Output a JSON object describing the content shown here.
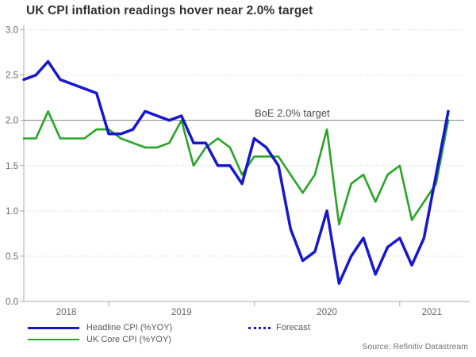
{
  "title": "UK CPI inflation readings hover near 2.0% target",
  "source": "Source: Refinitiv Datastream",
  "legend": {
    "headline": "Headline CPI (%YOY)",
    "core": "UK Core CPI (%YOY)",
    "forecast": "Forecast"
  },
  "colors": {
    "headline": "#1717cf",
    "core": "#27a527",
    "target_line": "#7f7f7f",
    "grid": "#d6d6d6",
    "axis": "#a8a8a8",
    "tick_text": "#666666",
    "title_text": "#333333",
    "annotation_text": "#4d4d4d"
  },
  "chart_data": {
    "type": "line",
    "title": "UK CPI inflation readings hover near 2.0% target",
    "xlabel": "",
    "ylabel": "",
    "ylim": [
      0,
      3.0
    ],
    "yticks": [
      0.0,
      0.5,
      1.0,
      1.5,
      2.0,
      2.5,
      3.0
    ],
    "xticks_years": [
      "2018",
      "2019",
      "2020",
      "2021"
    ],
    "grid": "dotted horizontal gridlines at each 0.5, solid line at 2.0",
    "legend_position": "bottom",
    "target": {
      "label": "BoE 2.0% target",
      "value": 2.0
    },
    "forecast": {
      "label": "Forecast",
      "series": "Headline CPI (%YOY)",
      "style": "dotted blue, final segment of headline line"
    },
    "x": [
      "2018-06",
      "2018-07",
      "2018-08",
      "2018-09",
      "2018-10",
      "2018-11",
      "2018-12",
      "2019-01",
      "2019-02",
      "2019-03",
      "2019-04",
      "2019-05",
      "2019-06",
      "2019-07",
      "2019-08",
      "2019-09",
      "2019-10",
      "2019-11",
      "2019-12",
      "2020-01",
      "2020-02",
      "2020-03",
      "2020-04",
      "2020-05",
      "2020-06",
      "2020-07",
      "2020-08",
      "2020-09",
      "2020-10",
      "2020-11",
      "2020-12",
      "2021-01",
      "2021-02",
      "2021-03",
      "2021-04",
      "2021-05"
    ],
    "series": [
      {
        "name": "Headline CPI (%YOY)",
        "color_key": "headline",
        "values": [
          2.45,
          2.5,
          2.65,
          2.45,
          2.4,
          2.35,
          2.3,
          1.85,
          1.85,
          1.9,
          2.1,
          2.05,
          2.0,
          2.05,
          1.75,
          1.75,
          1.5,
          1.5,
          1.3,
          1.8,
          1.7,
          1.5,
          0.8,
          0.45,
          0.55,
          1.0,
          0.2,
          0.5,
          0.7,
          0.3,
          0.6,
          0.7,
          0.4,
          0.7,
          1.4,
          2.1
        ]
      },
      {
        "name": "UK Core CPI (%YOY)",
        "color_key": "core",
        "values": [
          1.8,
          1.8,
          2.1,
          1.8,
          1.8,
          1.8,
          1.9,
          1.9,
          1.8,
          1.75,
          1.7,
          1.7,
          1.75,
          2.0,
          1.5,
          1.7,
          1.8,
          1.7,
          1.4,
          1.6,
          1.6,
          1.6,
          1.4,
          1.2,
          1.4,
          1.9,
          0.85,
          1.3,
          1.4,
          1.1,
          1.4,
          1.5,
          0.9,
          1.1,
          1.3,
          2.0
        ]
      }
    ]
  }
}
